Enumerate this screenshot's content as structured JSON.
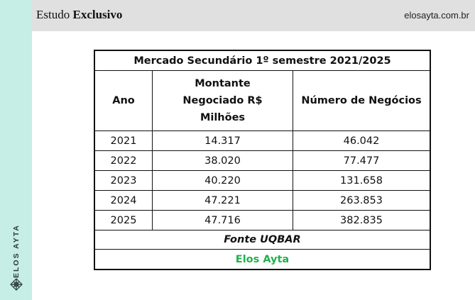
{
  "header": {
    "title_regular": "Estudo ",
    "title_bold": "Exclusivo",
    "site": "elosayta.com.br"
  },
  "sidebar": {
    "brand": "ELOS AYTA"
  },
  "table": {
    "title": "Mercado Secundário 1º semestre 2021/2025",
    "columns": [
      "Ano",
      "Montante Negociado R$ Milhões",
      "Número de Negócios"
    ],
    "rows": [
      {
        "ano": "2021",
        "montante": "14.317",
        "negocios": "46.042"
      },
      {
        "ano": "2022",
        "montante": "38.020",
        "negocios": "77.477"
      },
      {
        "ano": "2023",
        "montante": "40.220",
        "negocios": "131.658"
      },
      {
        "ano": "2024",
        "montante": "47.221",
        "negocios": "263.853"
      },
      {
        "ano": "2025",
        "montante": "47.716",
        "negocios": "382.835"
      }
    ],
    "source": "Fonte UQBAR",
    "credit": "Elos Ayta",
    "credit_color": "#21b14b"
  }
}
